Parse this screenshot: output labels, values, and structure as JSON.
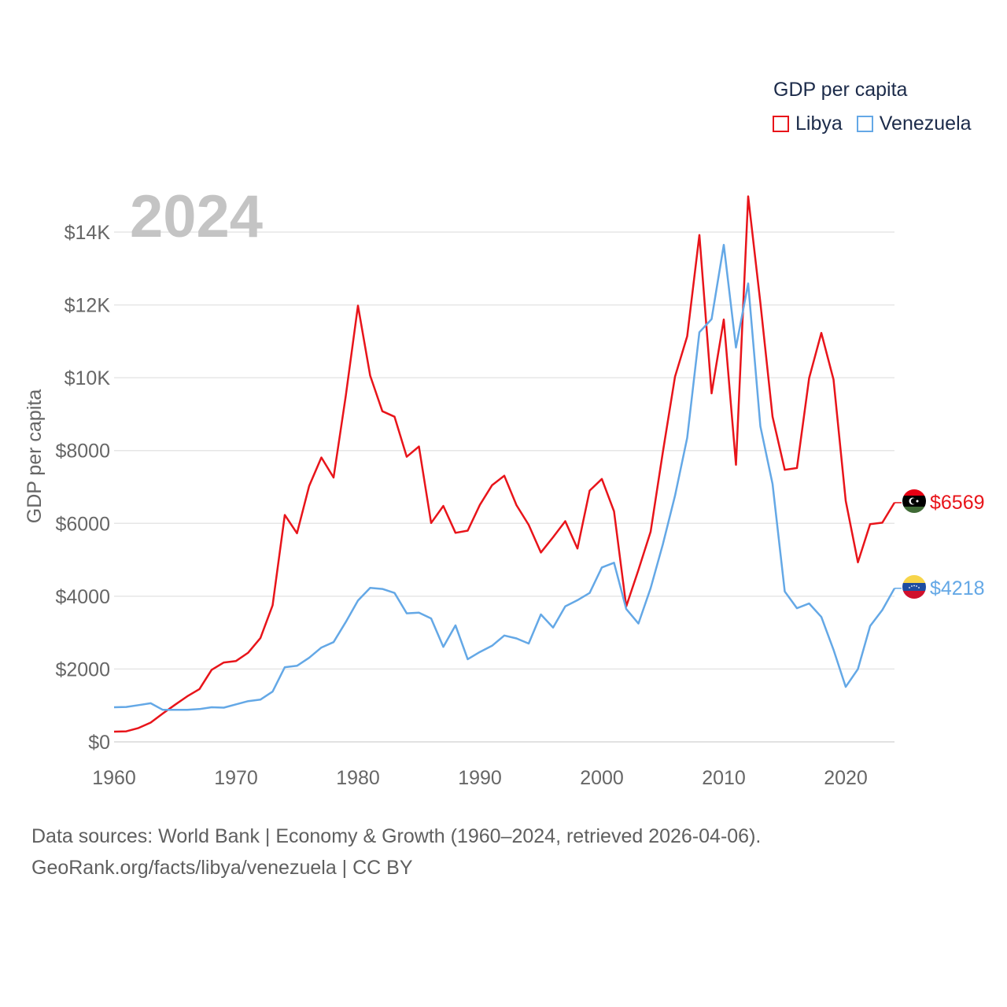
{
  "legend": {
    "title": "GDP per capita",
    "items": [
      {
        "label": "Libya",
        "color": "#e8141a"
      },
      {
        "label": "Venezuela",
        "color": "#64a8e6"
      }
    ]
  },
  "year_label": "2024",
  "source": {
    "line1": "Data sources: World Bank | Economy & Growth (1960–2024, retrieved 2026-04-06).",
    "line2": "GeoRank.org/facts/libya/venezuela | CC BY"
  },
  "chart_data": {
    "type": "line",
    "title": "",
    "xlabel": "",
    "ylabel": "GDP per capita",
    "xlim": [
      1960,
      2024
    ],
    "ylim": [
      0,
      14000
    ],
    "x_ticks": [
      1960,
      1970,
      1980,
      1990,
      2000,
      2010,
      2020
    ],
    "x_tick_labels": [
      "1960",
      "1970",
      "1980",
      "1990",
      "2000",
      "2010",
      "2020"
    ],
    "y_ticks": [
      0,
      2000,
      4000,
      6000,
      8000,
      10000,
      12000,
      14000
    ],
    "y_tick_labels": [
      "$0",
      "$2000",
      "$4000",
      "$6000",
      "$8000",
      "$10K",
      "$12K",
      "$14K"
    ],
    "grid": "horizontal",
    "x": [
      1960,
      1961,
      1962,
      1963,
      1964,
      1965,
      1966,
      1967,
      1968,
      1969,
      1970,
      1971,
      1972,
      1973,
      1974,
      1975,
      1976,
      1977,
      1978,
      1979,
      1980,
      1981,
      1982,
      1983,
      1984,
      1985,
      1986,
      1987,
      1988,
      1989,
      1990,
      1991,
      1992,
      1993,
      1994,
      1995,
      1996,
      1997,
      1998,
      1999,
      2000,
      2001,
      2002,
      2003,
      2004,
      2005,
      2006,
      2007,
      2008,
      2009,
      2010,
      2011,
      2012,
      2013,
      2014,
      2015,
      2016,
      2017,
      2018,
      2019,
      2020,
      2021,
      2022,
      2023,
      2024
    ],
    "series": [
      {
        "name": "Libya",
        "color": "#e8141a",
        "end_label": "$6569",
        "values": [
          280,
          290,
          380,
          530,
          780,
          1020,
          1250,
          1450,
          1980,
          2180,
          2220,
          2450,
          2850,
          3750,
          6230,
          5730,
          7030,
          7810,
          7260,
          9500,
          11980,
          10060,
          9080,
          8930,
          7830,
          8110,
          6010,
          6480,
          5740,
          5800,
          6510,
          7050,
          7310,
          6500,
          5960,
          5200,
          5620,
          6060,
          5310,
          6900,
          7220,
          6330,
          3720,
          4720,
          5770,
          7950,
          10030,
          11140,
          13920,
          9570,
          11600,
          7610,
          14980,
          12060,
          8930,
          7470,
          7520,
          9990,
          11230,
          9950,
          6620,
          4930,
          5980,
          6020,
          6569
        ]
      },
      {
        "name": "Venezuela",
        "color": "#64a8e6",
        "end_label": "$4218",
        "values": [
          950,
          960,
          1010,
          1060,
          880,
          880,
          880,
          900,
          950,
          940,
          1030,
          1120,
          1160,
          1380,
          2050,
          2090,
          2310,
          2590,
          2740,
          3290,
          3880,
          4230,
          4200,
          4090,
          3530,
          3550,
          3390,
          2610,
          3200,
          2270,
          2470,
          2640,
          2920,
          2840,
          2700,
          3500,
          3140,
          3720,
          3890,
          4090,
          4790,
          4920,
          3650,
          3250,
          4220,
          5420,
          6760,
          8350,
          11250,
          11610,
          13650,
          10830,
          12590,
          8670,
          7080,
          4130,
          3670,
          3800,
          3430,
          2530,
          1510,
          2000,
          3180,
          3620,
          4218
        ]
      }
    ]
  }
}
